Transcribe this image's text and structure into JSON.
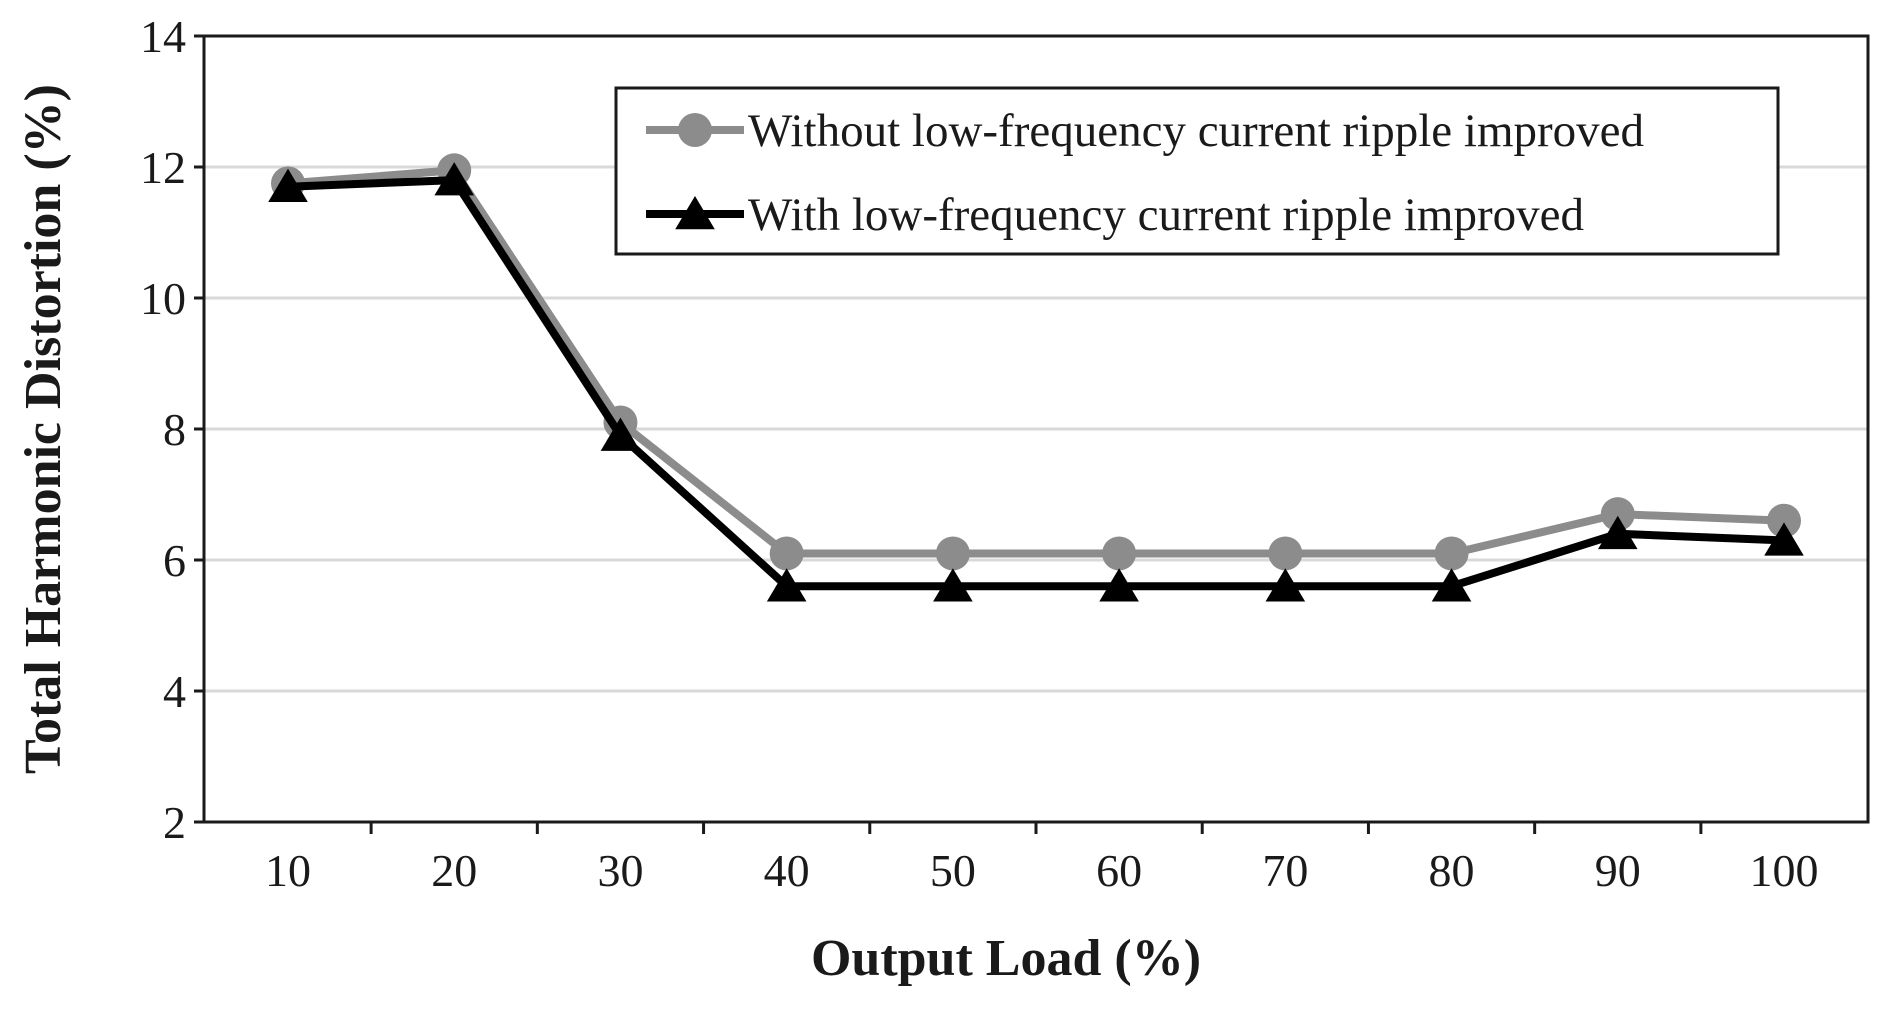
{
  "chart_data": {
    "type": "line",
    "title": "",
    "xlabel": "Output Load (%)",
    "ylabel": "Total Harmonic Distortion (%)",
    "x": [
      10,
      20,
      30,
      40,
      50,
      60,
      70,
      80,
      90,
      100
    ],
    "x_tick_labels": [
      "10",
      "20",
      "30",
      "40",
      "50",
      "60",
      "70",
      "80",
      "90",
      "100"
    ],
    "ylim": [
      2,
      14
    ],
    "y_ticks": [
      2,
      4,
      6,
      8,
      10,
      12,
      14
    ],
    "y_tick_labels": [
      "2",
      "4",
      "6",
      "8",
      "10",
      "12",
      "14"
    ],
    "grid": "horizontal",
    "legend_position": "top-right",
    "series": [
      {
        "name": "Without low-frequency current ripple improved",
        "marker": "circle",
        "color": "#8c8c8c",
        "values": [
          11.75,
          11.95,
          8.1,
          6.1,
          6.1,
          6.1,
          6.1,
          6.1,
          6.7,
          6.6
        ]
      },
      {
        "name": "With low-frequency current ripple improved",
        "marker": "triangle",
        "color": "#000000",
        "values": [
          11.7,
          11.8,
          7.9,
          5.6,
          5.6,
          5.6,
          5.6,
          5.6,
          6.4,
          6.3
        ]
      }
    ]
  }
}
